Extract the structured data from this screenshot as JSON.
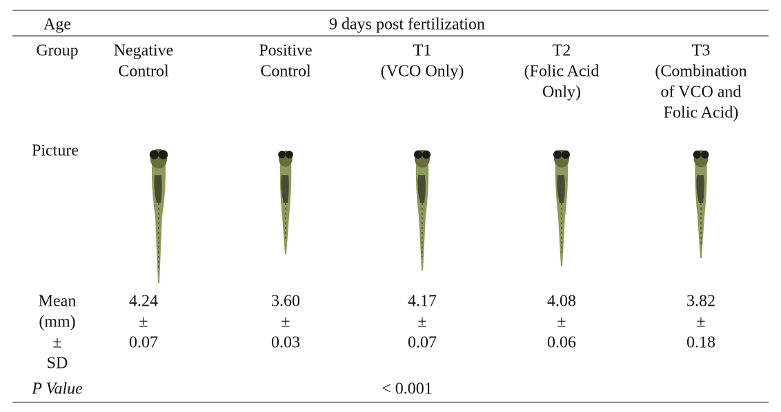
{
  "table": {
    "age": {
      "label": "Age",
      "value": "9 days post fertilization"
    },
    "group": {
      "label": "Group",
      "columns": [
        [
          "Negative",
          "Control"
        ],
        [
          "Positive",
          "Control"
        ],
        [
          "T1",
          "(VCO Only)"
        ],
        [
          "T2",
          "(Folic Acid",
          "Only)"
        ],
        [
          "T3",
          "(Combination",
          "of VCO and",
          "Folic Acid)"
        ]
      ]
    },
    "picture": {
      "label": "Picture"
    },
    "mean": {
      "label": [
        "Mean",
        "(mm)",
        "±",
        "SD"
      ],
      "columns": [
        [
          "4.24",
          "±",
          "0.07"
        ],
        [
          "3.60",
          "±",
          "0.03"
        ],
        [
          "4.17",
          "±",
          "0.07"
        ],
        [
          "4.08",
          "±",
          "0.06"
        ],
        [
          "3.82",
          "±",
          "0.18"
        ]
      ]
    },
    "p_value": {
      "label": "P Value",
      "value": "< 0.001"
    }
  }
}
